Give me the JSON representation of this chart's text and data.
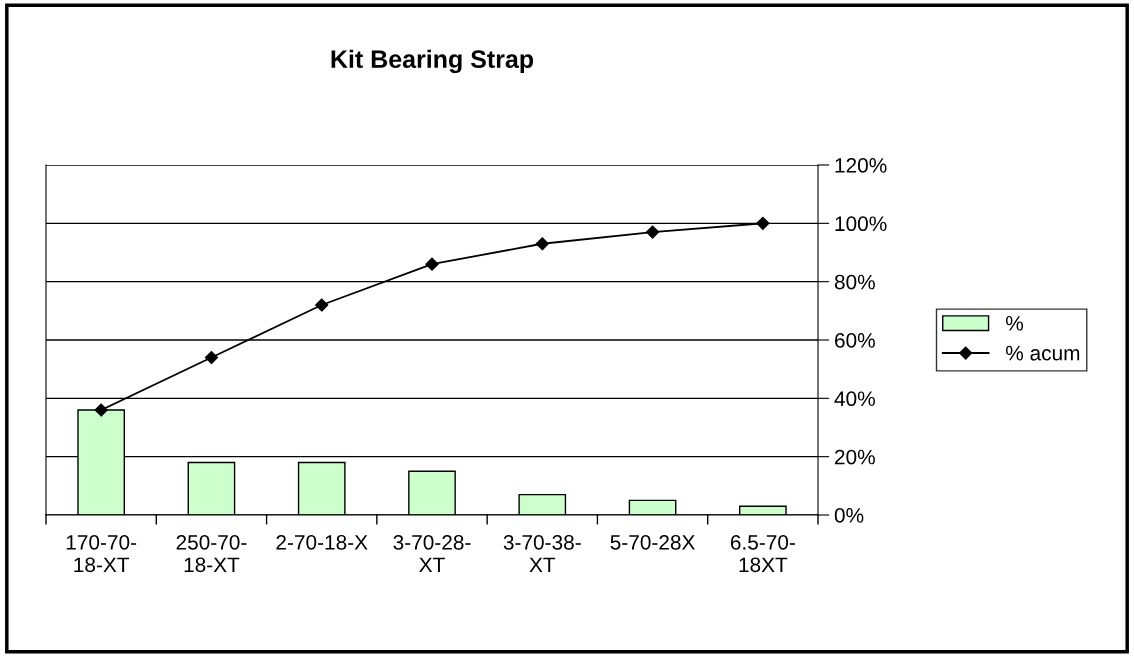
{
  "chart_data": {
    "type": "bar",
    "title": "Kit Bearing Strap",
    "categories": [
      "170-70-\n18-XT",
      "250-70-\n18-XT",
      "2-70-18-X",
      "3-70-28-\nXT",
      "3-70-38-\nXT",
      "5-70-28X",
      "6.5-70-\n18XT"
    ],
    "series": [
      {
        "name": "%",
        "color": "#ccffcc",
        "values": [
          36,
          18,
          18,
          15,
          7,
          5,
          3
        ]
      },
      {
        "name": "% acum",
        "type": "line",
        "color": "#000000",
        "marker": "diamond",
        "values": [
          36,
          54,
          72,
          86,
          93,
          97,
          100
        ]
      }
    ],
    "ylim": [
      0,
      120
    ],
    "yticks": [
      {
        "value": 0,
        "label": "0%"
      },
      {
        "value": 20,
        "label": "20%"
      },
      {
        "value": 40,
        "label": "40%"
      },
      {
        "value": 60,
        "label": "60%"
      },
      {
        "value": 80,
        "label": "80%"
      },
      {
        "value": 100,
        "label": "100%"
      },
      {
        "value": 120,
        "label": "120%"
      }
    ],
    "grid": "y",
    "legend": "right"
  }
}
